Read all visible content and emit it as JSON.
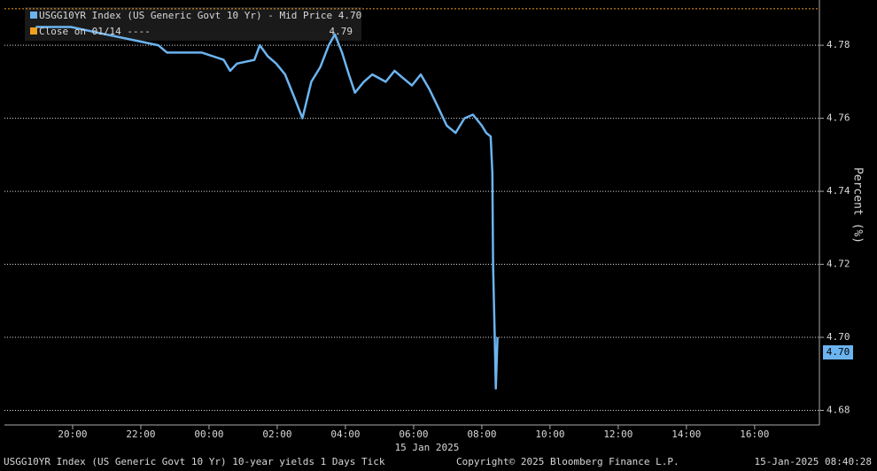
{
  "chart_data": {
    "type": "line",
    "title": "USGG10YR Index (US Generic Govt 10 Yr) 10-year yields 1 Days  Tick",
    "copyright": "Copyright© 2025 Bloomberg Finance L.P.",
    "timestamp": "15-Jan-2025 08:40:28",
    "x_label": "15 Jan 2025",
    "y_label": "Percent (%)",
    "x": [
      18.92,
      19.95,
      20.97,
      22.0,
      22.51,
      22.77,
      23.15,
      23.79,
      24.43,
      24.62,
      24.82,
      25.33,
      25.49,
      25.72,
      25.97,
      26.23,
      26.49,
      26.74,
      27.0,
      27.26,
      27.51,
      27.69,
      27.9,
      28.1,
      28.28,
      28.54,
      28.79,
      29.18,
      29.44,
      29.69,
      29.95,
      30.21,
      30.46,
      30.72,
      30.97,
      31.23,
      31.49,
      31.74,
      32.0,
      32.13,
      32.26,
      32.31,
      32.33,
      32.38,
      32.41,
      32.46
    ],
    "series": [
      {
        "name": "USGG10YR Index (US Generic Govt 10 Yr) - Mid Price 4.70",
        "color": "#6cb4f0",
        "values": [
          4.785,
          4.785,
          4.783,
          4.781,
          4.78,
          4.778,
          4.778,
          4.778,
          4.776,
          4.773,
          4.775,
          4.776,
          4.78,
          4.777,
          4.775,
          4.772,
          4.766,
          4.76,
          4.77,
          4.774,
          4.78,
          4.783,
          4.778,
          4.772,
          4.767,
          4.77,
          4.772,
          4.77,
          4.773,
          4.771,
          4.769,
          4.772,
          4.768,
          4.763,
          4.758,
          4.756,
          4.76,
          4.761,
          4.758,
          4.756,
          4.755,
          4.745,
          4.72,
          4.7,
          4.686,
          4.7
        ]
      }
    ],
    "reference_line": {
      "name": "Close on 01/14 ----",
      "value": 4.79,
      "color": "#f0a020"
    },
    "last_price": {
      "value": 4.7,
      "label": "4.70"
    },
    "xlim": [
      18,
      41.9
    ],
    "xticks": [
      {
        "value": 20,
        "label": "20:00"
      },
      {
        "value": 22,
        "label": "22:00"
      },
      {
        "value": 24,
        "label": "00:00"
      },
      {
        "value": 26,
        "label": "02:00"
      },
      {
        "value": 28,
        "label": "04:00"
      },
      {
        "value": 30,
        "label": "06:00"
      },
      {
        "value": 32,
        "label": "08:00"
      },
      {
        "value": 34,
        "label": "10:00"
      },
      {
        "value": 36,
        "label": "12:00"
      },
      {
        "value": 38,
        "label": "14:00"
      },
      {
        "value": 40,
        "label": "16:00"
      }
    ],
    "ylim": [
      4.676,
      4.7924
    ],
    "yticks": [
      4.68,
      {
        "value": 4.7,
        "label": "4.70"
      },
      4.72,
      4.74,
      4.76,
      4.78
    ],
    "grid": true
  }
}
